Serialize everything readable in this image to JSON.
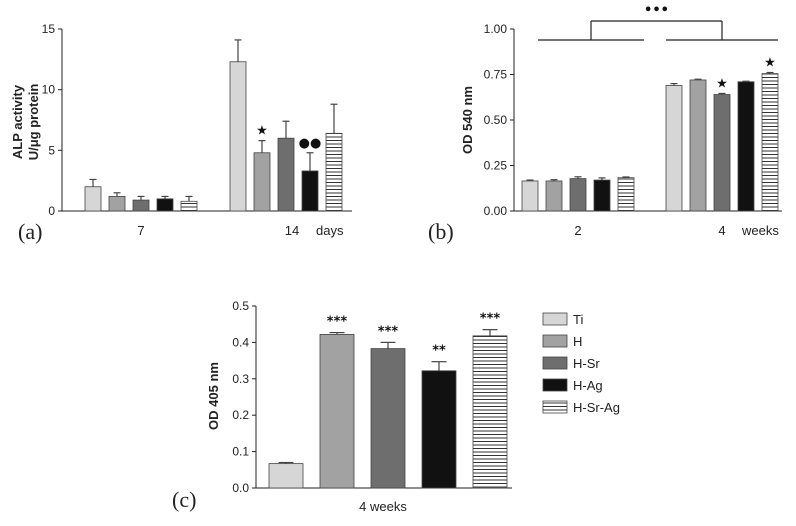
{
  "groups": [
    "Ti",
    "H",
    "H-Sr",
    "H-Ag",
    "H-Sr-Ag"
  ],
  "colors": {
    "Ti": "#d6d6d6",
    "H": "#a2a2a2",
    "H-Sr": "#6e6e6e",
    "H-Ag": "#111111",
    "H-Sr-Ag": "#ffffff"
  },
  "chart_data": [
    {
      "type": "bar",
      "panel": "(a)",
      "ylabel_line1": "ALP activity",
      "ylabel_line2": "U/μg protein",
      "ylim": [
        0,
        15
      ],
      "yticks": [
        "0",
        "5",
        "10",
        "15"
      ],
      "categories": [
        "7",
        "14"
      ],
      "x_unit": "days",
      "series": [
        {
          "name": "Ti",
          "values": [
            2.0,
            12.3
          ],
          "errors": [
            0.6,
            1.8
          ]
        },
        {
          "name": "H",
          "values": [
            1.2,
            4.8
          ],
          "errors": [
            0.3,
            1.0
          ]
        },
        {
          "name": "H-Sr",
          "values": [
            0.9,
            6.0
          ],
          "errors": [
            0.3,
            1.4
          ]
        },
        {
          "name": "H-Ag",
          "values": [
            1.0,
            3.3
          ],
          "errors": [
            0.2,
            1.5
          ]
        },
        {
          "name": "H-Sr-Ag",
          "values": [
            0.8,
            6.4
          ],
          "errors": [
            0.4,
            2.4
          ]
        }
      ],
      "annotations": [
        {
          "category": "14",
          "series": "H",
          "text": "★"
        },
        {
          "category": "14",
          "series": "H-Ag",
          "text": "●●"
        }
      ]
    },
    {
      "type": "bar",
      "panel": "(b)",
      "ylabel": "OD 540 nm",
      "ylim": [
        0,
        1.0
      ],
      "yticks": [
        "0.00",
        "0.25",
        "0.50",
        "0.75",
        "1.00"
      ],
      "categories": [
        "2",
        "4"
      ],
      "x_unit": "weeks",
      "series": [
        {
          "name": "Ti",
          "values": [
            0.165,
            0.69
          ],
          "errors": [
            0.005,
            0.01
          ]
        },
        {
          "name": "H",
          "values": [
            0.165,
            0.72
          ],
          "errors": [
            0.007,
            0.004
          ]
        },
        {
          "name": "H-Sr",
          "values": [
            0.178,
            0.64
          ],
          "errors": [
            0.01,
            0.006
          ]
        },
        {
          "name": "H-Ag",
          "values": [
            0.17,
            0.71
          ],
          "errors": [
            0.012,
            0.003
          ]
        },
        {
          "name": "H-Sr-Ag",
          "values": [
            0.183,
            0.755
          ],
          "errors": [
            0.004,
            0.006
          ]
        }
      ],
      "annotations": [
        {
          "category": "4",
          "series": "H-Sr",
          "text": "★"
        },
        {
          "category": "4",
          "series": "H-Sr-Ag",
          "text": "★"
        },
        {
          "between_categories": true,
          "text": "•••"
        }
      ]
    },
    {
      "type": "bar",
      "panel": "(c)",
      "ylabel": "OD 405 nm",
      "ylim": [
        0,
        0.5
      ],
      "yticks": [
        "0.0",
        "0.1",
        "0.2",
        "0.3",
        "0.4",
        "0.5"
      ],
      "xlabel": "4 weeks",
      "categories": [
        "Ti",
        "H",
        "H-Sr",
        "H-Ag",
        "H-Sr-Ag"
      ],
      "values": [
        0.067,
        0.422,
        0.383,
        0.322,
        0.418
      ],
      "errors": [
        0.003,
        0.005,
        0.017,
        0.025,
        0.017
      ],
      "significance": [
        "",
        "***",
        "***",
        "**",
        "***"
      ],
      "legend": [
        "Ti",
        "H",
        "H-Sr",
        "H-Ag",
        "H-Sr-Ag"
      ],
      "legend_position": "right"
    }
  ]
}
